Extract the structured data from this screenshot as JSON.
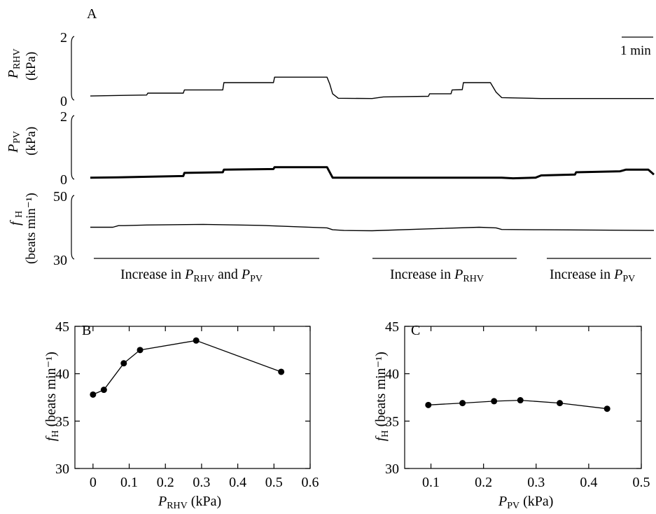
{
  "panelA": {
    "letter": "A",
    "scale_bar": "1 min",
    "rhv": {
      "label_main": "P",
      "label_sub": "RHV",
      "unit": "(kPa)",
      "ticks": [
        "2",
        "0"
      ],
      "range": [
        0,
        2
      ],
      "trace": [
        [
          0,
          0.13
        ],
        [
          0.06,
          0.15
        ],
        [
          0.1,
          0.16
        ],
        [
          0.102,
          0.22
        ],
        [
          0.165,
          0.22
        ],
        [
          0.167,
          0.32
        ],
        [
          0.235,
          0.32
        ],
        [
          0.237,
          0.55
        ],
        [
          0.325,
          0.55
        ],
        [
          0.327,
          0.72
        ],
        [
          0.42,
          0.72
        ],
        [
          0.425,
          0.5
        ],
        [
          0.43,
          0.2
        ],
        [
          0.44,
          0.06
        ],
        [
          0.5,
          0.05
        ],
        [
          0.52,
          0.1
        ],
        [
          0.6,
          0.12
        ],
        [
          0.602,
          0.2
        ],
        [
          0.64,
          0.2
        ],
        [
          0.642,
          0.32
        ],
        [
          0.66,
          0.33
        ],
        [
          0.662,
          0.55
        ],
        [
          0.71,
          0.55
        ],
        [
          0.72,
          0.25
        ],
        [
          0.73,
          0.08
        ],
        [
          0.8,
          0.05
        ],
        [
          1,
          0.05
        ]
      ]
    },
    "pv": {
      "label_main": "P",
      "label_sub": "PV",
      "unit": "(kPa)",
      "ticks": [
        "2",
        "0"
      ],
      "range": [
        0,
        2
      ],
      "trace": [
        [
          0,
          0.05
        ],
        [
          0.05,
          0.06
        ],
        [
          0.102,
          0.08
        ],
        [
          0.165,
          0.1
        ],
        [
          0.167,
          0.2
        ],
        [
          0.235,
          0.22
        ],
        [
          0.237,
          0.3
        ],
        [
          0.325,
          0.32
        ],
        [
          0.327,
          0.38
        ],
        [
          0.42,
          0.38
        ],
        [
          0.43,
          0.05
        ],
        [
          0.6,
          0.05
        ],
        [
          0.73,
          0.05
        ],
        [
          0.75,
          0.03
        ],
        [
          0.79,
          0.05
        ],
        [
          0.8,
          0.12
        ],
        [
          0.86,
          0.15
        ],
        [
          0.862,
          0.22
        ],
        [
          0.94,
          0.25
        ],
        [
          0.95,
          0.3
        ],
        [
          0.99,
          0.3
        ],
        [
          1,
          0.15
        ]
      ]
    },
    "fh": {
      "label_main": "f",
      "label_sub": "H",
      "unit": "(beats min⁻¹)",
      "ticks": [
        "50",
        "30"
      ],
      "range": [
        30,
        50
      ],
      "trace": [
        [
          0,
          40
        ],
        [
          0.04,
          40
        ],
        [
          0.05,
          40.5
        ],
        [
          0.06,
          40.5
        ],
        [
          0.1,
          40.7
        ],
        [
          0.2,
          40.9
        ],
        [
          0.3,
          40.6
        ],
        [
          0.42,
          39.8
        ],
        [
          0.43,
          39.2
        ],
        [
          0.45,
          39
        ],
        [
          0.5,
          38.9
        ],
        [
          0.6,
          39.5
        ],
        [
          0.69,
          40
        ],
        [
          0.72,
          39.8
        ],
        [
          0.73,
          39.3
        ],
        [
          0.8,
          39.2
        ],
        [
          0.9,
          39.1
        ],
        [
          1,
          39
        ]
      ]
    },
    "bars": [
      {
        "label_pre": "Increase in ",
        "p1": "P",
        "s1": "RHV",
        "mid": " and ",
        "p2": "P",
        "s2": "PV"
      },
      {
        "label_pre": "Increase in ",
        "p1": "P",
        "s1": "RHV",
        "mid": "",
        "p2": "",
        "s2": ""
      },
      {
        "label_pre": "Increase in ",
        "p1": "P",
        "s1": "PV",
        "mid": "",
        "p2": "",
        "s2": ""
      }
    ]
  },
  "chart_data": [
    {
      "type": "line",
      "panel": "B",
      "xlabel_main": "P",
      "xlabel_sub": "RHV",
      "xlabel_unit": " (kPa)",
      "ylabel_main": "f",
      "ylabel_sub": "H",
      "ylabel_unit": " (beats min⁻¹)",
      "xlim": [
        -0.05,
        0.6
      ],
      "ylim": [
        30,
        45
      ],
      "xticks": [
        "0",
        "0.1",
        "0.2",
        "0.3",
        "0.4",
        "0.5",
        "0.6"
      ],
      "yticks": [
        "30",
        "35",
        "40",
        "45"
      ],
      "x": [
        0,
        0.03,
        0.085,
        0.13,
        0.285,
        0.52
      ],
      "y": [
        37.8,
        38.3,
        41.1,
        42.5,
        43.5,
        40.2
      ]
    },
    {
      "type": "line",
      "panel": "C",
      "xlabel_main": "P",
      "xlabel_sub": "PV",
      "xlabel_unit": " (kPa)",
      "ylabel_main": "f",
      "ylabel_sub": "H",
      "ylabel_unit": " (beats min⁻¹)",
      "xlim": [
        0.05,
        0.5
      ],
      "ylim": [
        30,
        45
      ],
      "xticks": [
        "0.1",
        "0.2",
        "0.3",
        "0.4",
        "0.5"
      ],
      "yticks": [
        "30",
        "35",
        "40",
        "45"
      ],
      "x": [
        0.095,
        0.16,
        0.22,
        0.27,
        0.345,
        0.435
      ],
      "y": [
        36.7,
        36.9,
        37.1,
        37.2,
        36.9,
        36.3
      ]
    }
  ]
}
